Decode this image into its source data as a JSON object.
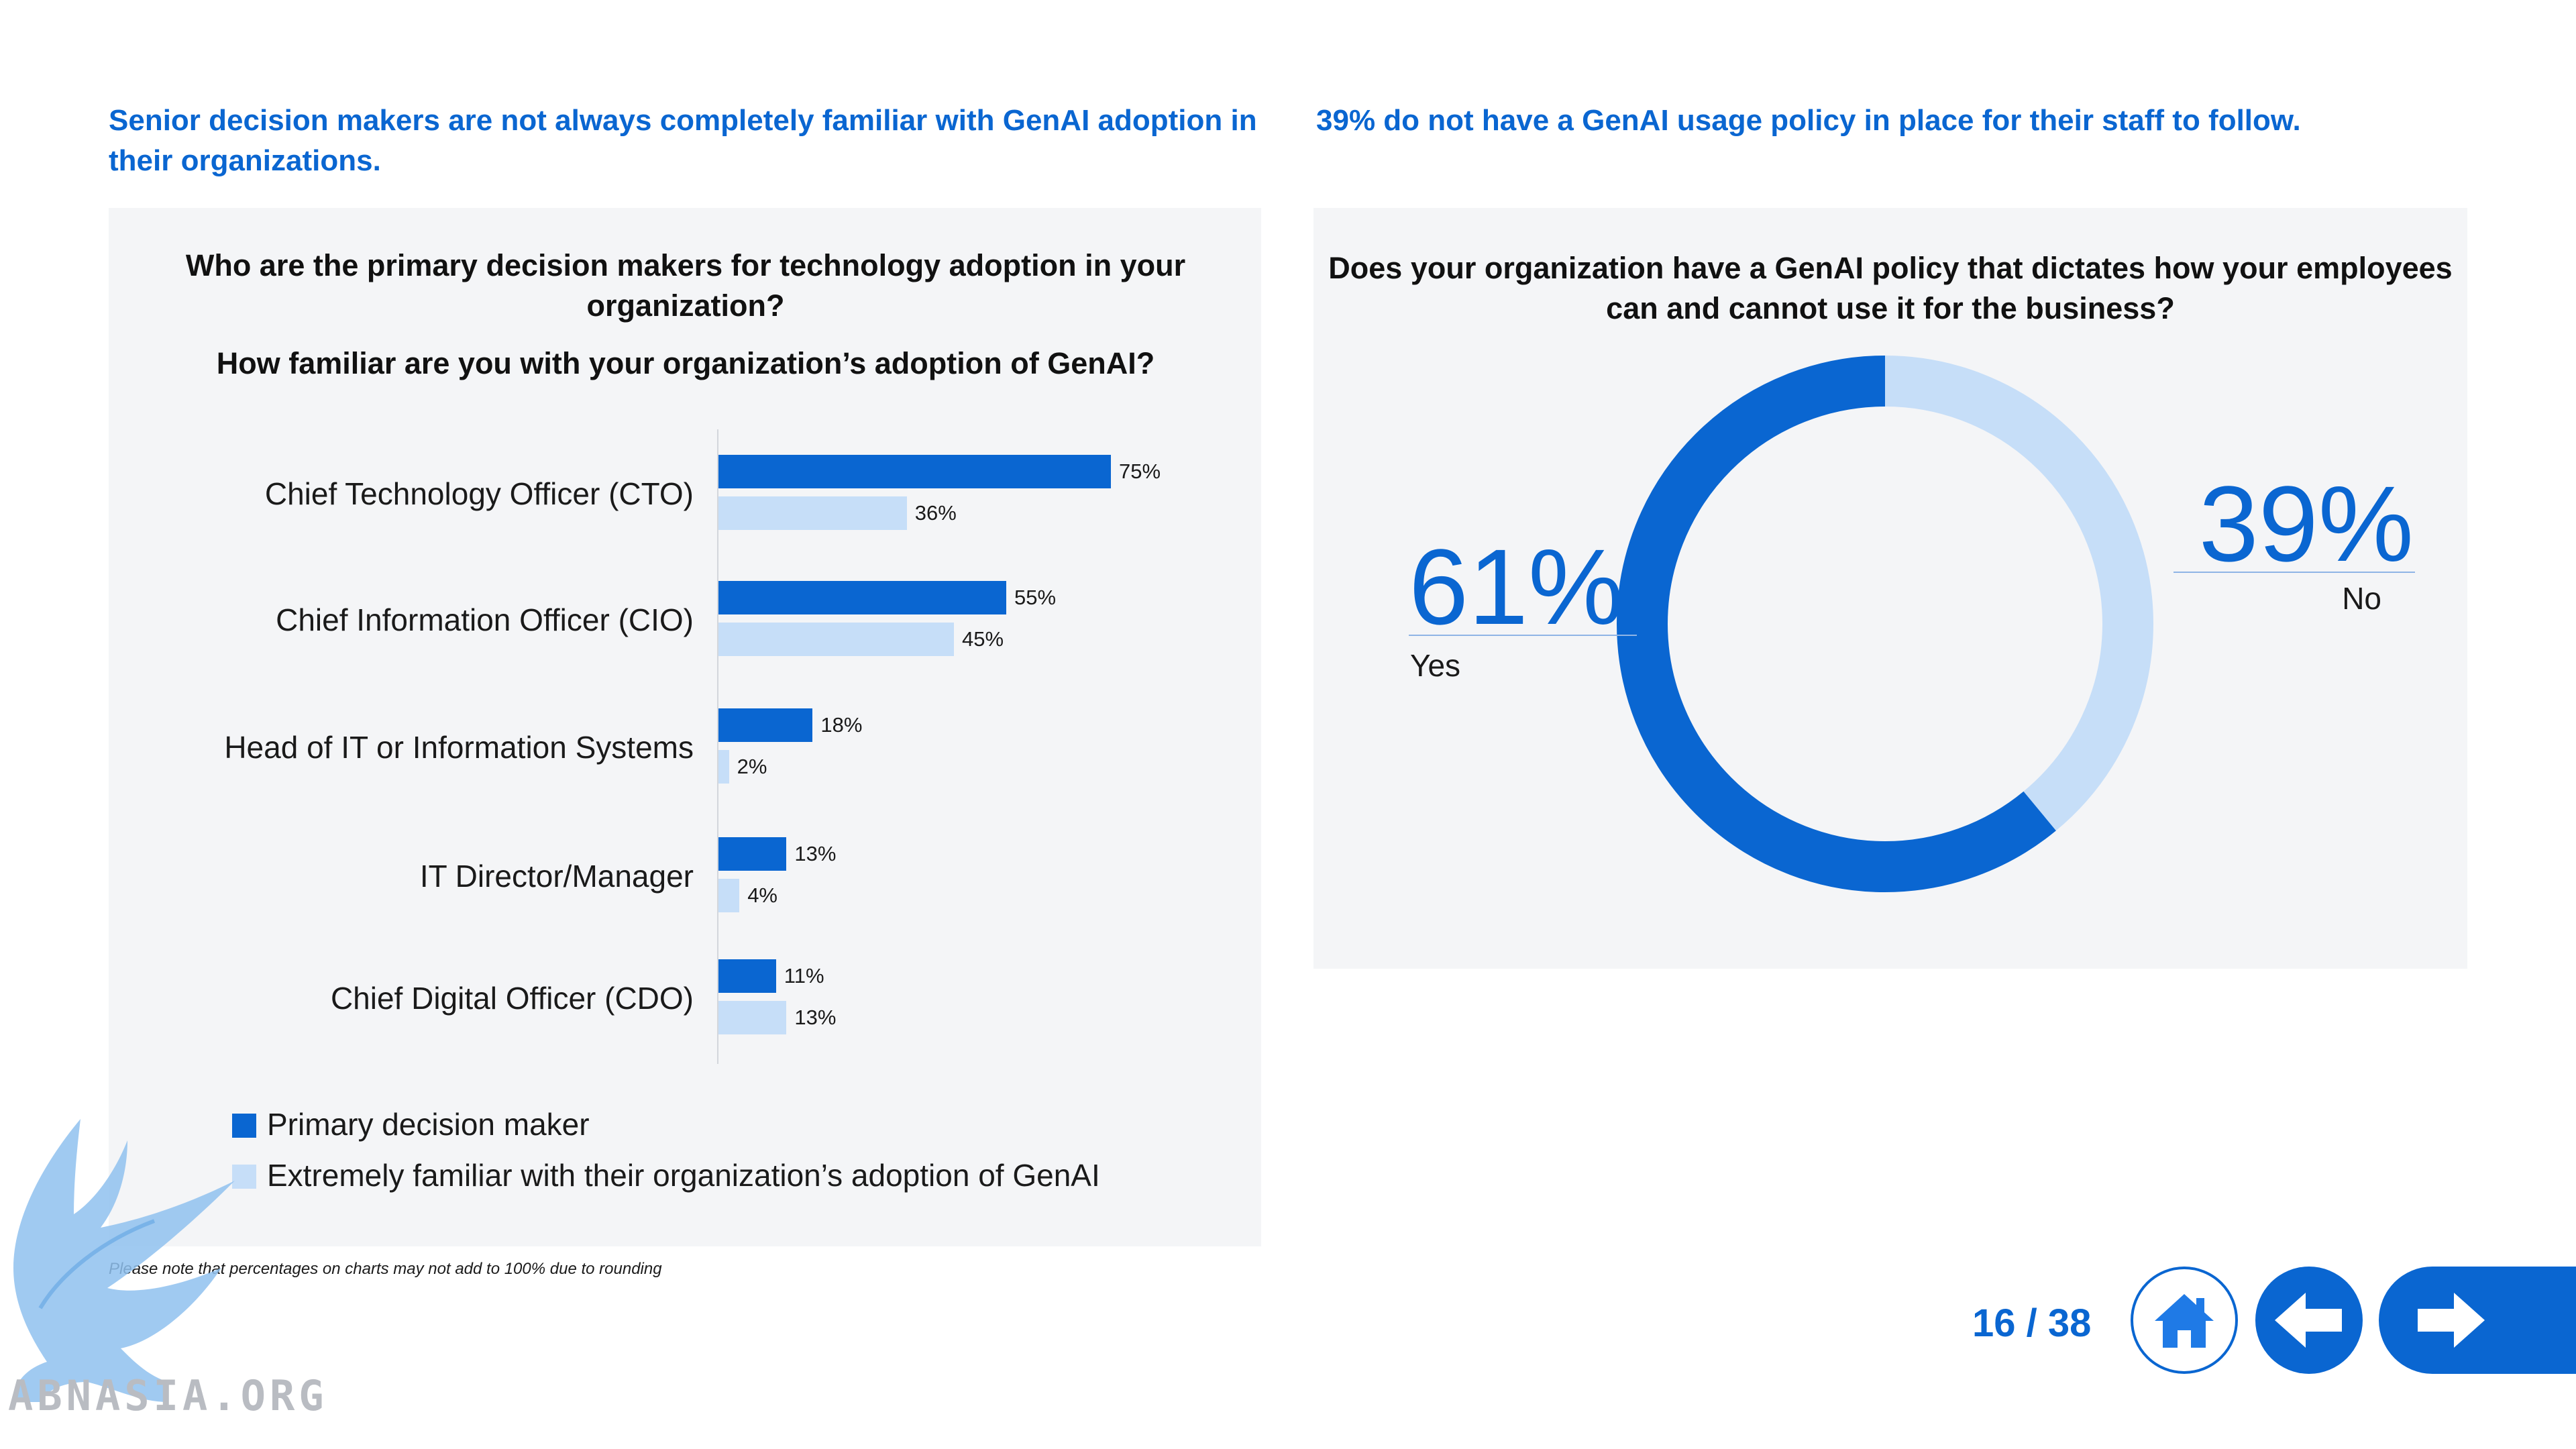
{
  "headlines": {
    "left": "Senior decision makers are not always completely familiar with GenAI adoption in their organizations.",
    "right": "39% do not have a GenAI usage policy in place for their staff to follow."
  },
  "left_panel": {
    "question_1": "Who are the primary decision makers for technology adoption in your organization?",
    "question_2": "How familiar are you with your organization’s adoption of GenAI?",
    "footnote": "Please note that percentages on charts may not add to 100% due to rounding"
  },
  "right_panel": {
    "question": "Does your organization have a GenAI policy that dictates how your employees can and cannot use it for the business?"
  },
  "chart_data": [
    {
      "type": "bar",
      "orientation": "horizontal",
      "categories": [
        "Chief Technology Officer (CTO)",
        "Chief Information Officer (CIO)",
        "Head of IT or Information Systems",
        "IT Director/Manager",
        "Chief Digital Officer (CDO)"
      ],
      "series": [
        {
          "name": "Primary decision maker",
          "values": [
            75,
            55,
            18,
            13,
            11
          ],
          "labels": [
            "75%",
            "55%",
            "18%",
            "13%",
            "11%"
          ],
          "color": "#0a66d1"
        },
        {
          "name": "Extremely familiar with their organization’s adoption of GenAI",
          "values": [
            36,
            45,
            2,
            4,
            13
          ],
          "labels": [
            "36%",
            "45%",
            "2%",
            "4%",
            "13%"
          ],
          "color": "#c6def8"
        }
      ],
      "xlim": [
        0,
        100
      ],
      "legend": "bottom-left",
      "grid": false
    },
    {
      "type": "pie",
      "donut": true,
      "categories": [
        "Yes",
        "No"
      ],
      "values": [
        61,
        39
      ],
      "labels": [
        "61%",
        "39%"
      ],
      "colors": [
        "#0a66d1",
        "#c6def8"
      ]
    }
  ],
  "pager": {
    "text": "16 / 38"
  },
  "nav": {
    "home_icon": "home-icon",
    "back_icon": "arrow-left-icon",
    "next_icon": "arrow-right-icon"
  },
  "watermark": {
    "text": "ABNASIA.ORG"
  }
}
